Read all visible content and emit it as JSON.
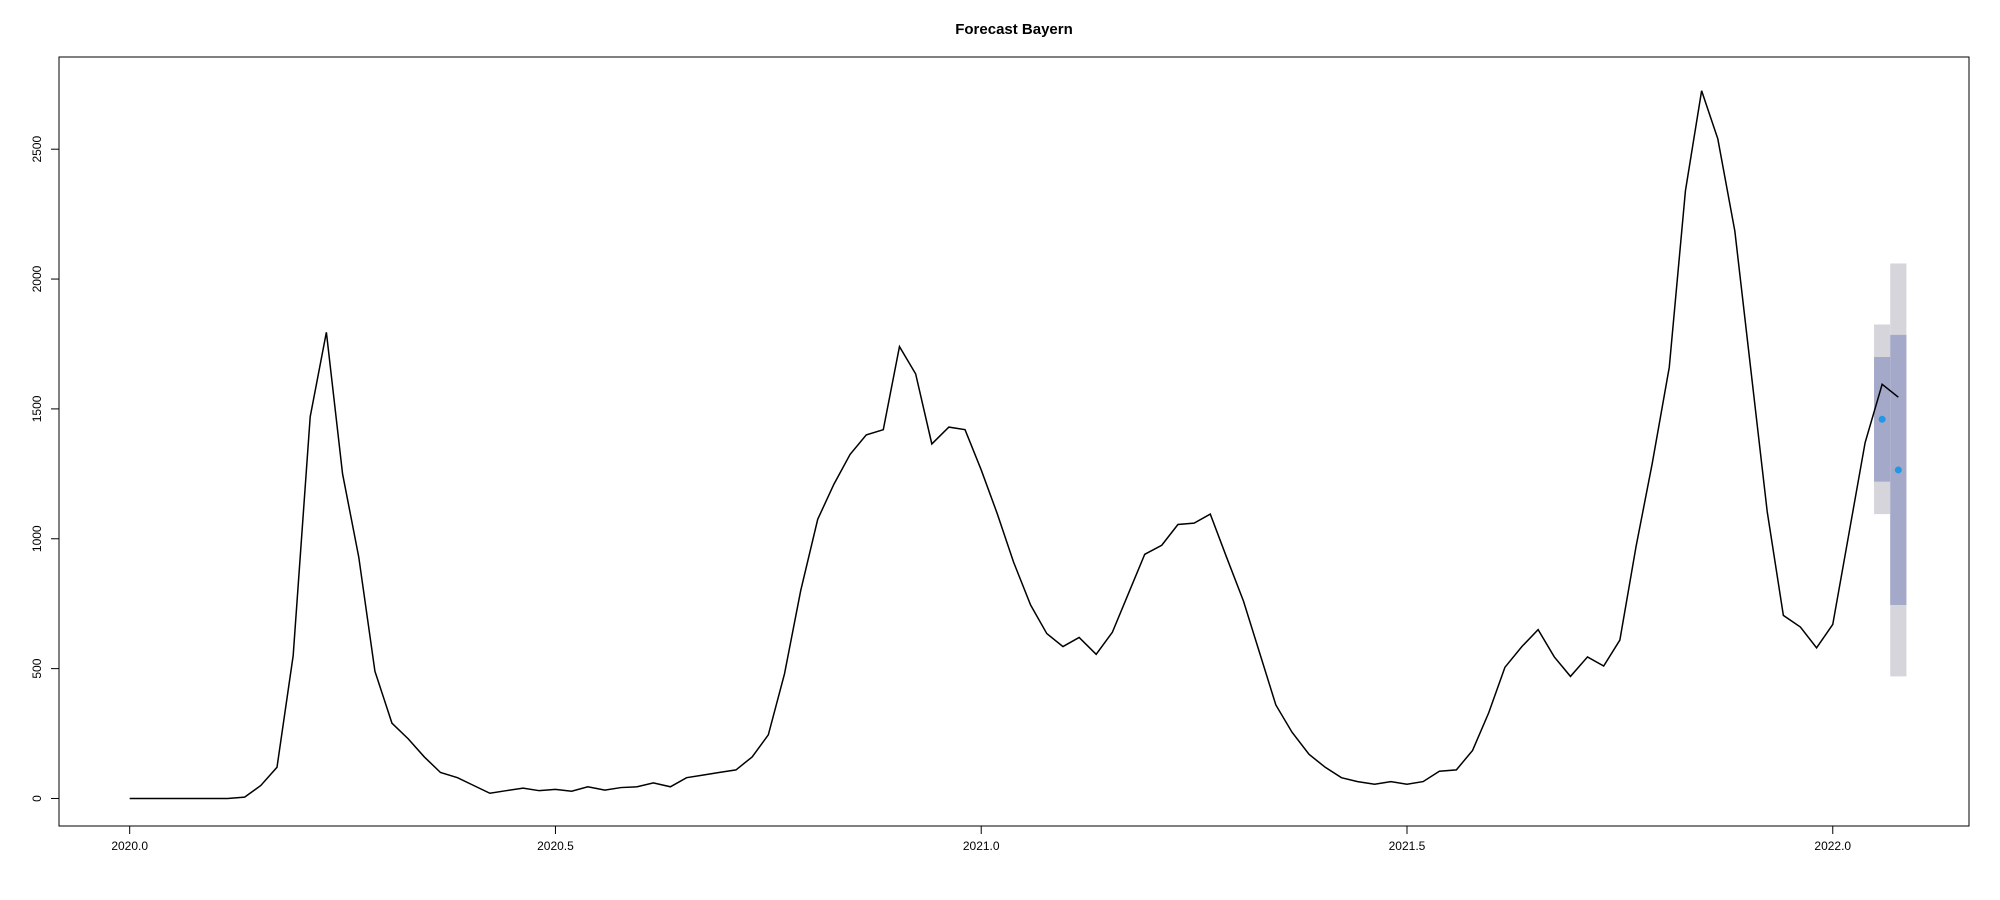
{
  "chart_data": {
    "type": "line",
    "title": "Forecast Bayern",
    "color": "#000000",
    "x": [
      2020.0,
      2020.019,
      2020.038,
      2020.058,
      2020.077,
      2020.096,
      2020.115,
      2020.135,
      2020.154,
      2020.173,
      2020.192,
      2020.212,
      2020.231,
      2020.25,
      2020.269,
      2020.288,
      2020.308,
      2020.327,
      2020.346,
      2020.365,
      2020.385,
      2020.404,
      2020.423,
      2020.442,
      2020.462,
      2020.481,
      2020.5,
      2020.519,
      2020.538,
      2020.558,
      2020.577,
      2020.596,
      2020.615,
      2020.635,
      2020.654,
      2020.673,
      2020.692,
      2020.712,
      2020.731,
      2020.75,
      2020.769,
      2020.788,
      2020.808,
      2020.827,
      2020.846,
      2020.865,
      2020.885,
      2020.904,
      2020.923,
      2020.942,
      2020.962,
      2020.981,
      2021.0,
      2021.019,
      2021.038,
      2021.058,
      2021.077,
      2021.096,
      2021.115,
      2021.135,
      2021.154,
      2021.173,
      2021.192,
      2021.212,
      2021.231,
      2021.25,
      2021.269,
      2021.288,
      2021.308,
      2021.327,
      2021.346,
      2021.365,
      2021.385,
      2021.404,
      2021.423,
      2021.442,
      2021.462,
      2021.481,
      2021.5,
      2021.519,
      2021.538,
      2021.558,
      2021.577,
      2021.596,
      2021.615,
      2021.635,
      2021.654,
      2021.673,
      2021.692,
      2021.712,
      2021.731,
      2021.75,
      2021.769,
      2021.788,
      2021.808,
      2021.827,
      2021.846,
      2021.865,
      2021.885,
      2021.904,
      2021.923,
      2021.942,
      2021.962,
      2021.981,
      2022.0,
      2022.019,
      2022.038,
      2022.058,
      2022.077
    ],
    "values": [
      0,
      0,
      0,
      0,
      0,
      0,
      0,
      5,
      50,
      120,
      550,
      1470,
      1795,
      1250,
      930,
      490,
      290,
      230,
      160,
      100,
      80,
      50,
      20,
      30,
      40,
      30,
      35,
      28,
      45,
      32,
      42,
      45,
      60,
      45,
      80,
      90,
      100,
      110,
      160,
      245,
      480,
      800,
      1075,
      1210,
      1325,
      1400,
      1420,
      1740,
      1635,
      1365,
      1430,
      1420,
      1265,
      1095,
      910,
      745,
      635,
      585,
      620,
      555,
      640,
      790,
      940,
      975,
      1055,
      1060,
      1095,
      930,
      760,
      560,
      360,
      255,
      170,
      120,
      80,
      65,
      55,
      65,
      55,
      65,
      105,
      110,
      185,
      330,
      505,
      585,
      650,
      545,
      470,
      545,
      510,
      610,
      970,
      1290,
      1660,
      2340,
      2725,
      2540,
      2185,
      1645,
      1105,
      705,
      660,
      580,
      670,
      1020,
      1370,
      1595,
      1545
    ],
    "forecast": {
      "x": [
        2022.058,
        2022.077
      ],
      "values": [
        1460,
        1265
      ],
      "lower_80": [
        1220,
        745
      ],
      "upper_80": [
        1700,
        1785
      ],
      "lower_95": [
        1095,
        470
      ],
      "upper_95": [
        1825,
        2060
      ],
      "color": "#2297e6",
      "color_80": "#a4a9c9",
      "color_95": "#d5d5db"
    },
    "xlim": [
      2019.917,
      2022.16
    ],
    "ylim": [
      -106,
      2855
    ],
    "xticks": [
      {
        "value": 2020.0,
        "label": "2020.0"
      },
      {
        "value": 2020.5,
        "label": "2020.5"
      },
      {
        "value": 2021.0,
        "label": "2021.0"
      },
      {
        "value": 2021.5,
        "label": "2021.5"
      },
      {
        "value": 2022.0,
        "label": "2022.0"
      }
    ],
    "yticks": [
      0,
      500,
      1000,
      1500,
      2000,
      2500
    ]
  }
}
